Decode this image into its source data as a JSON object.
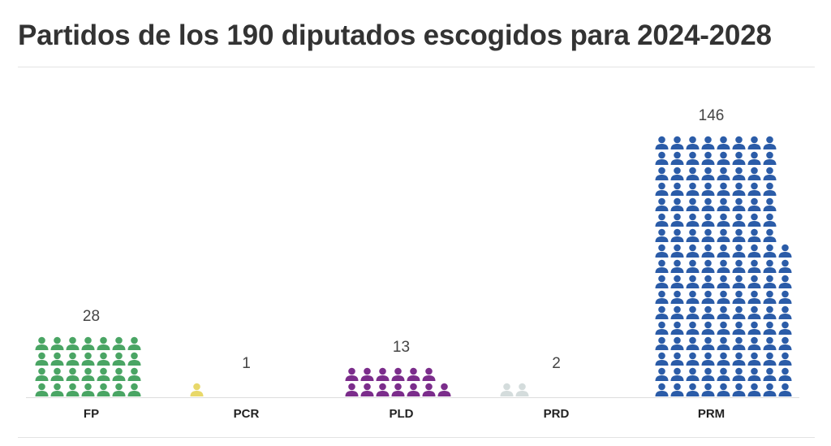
{
  "title": "Partidos de los 190 diputados escogidos para 2024-2028",
  "chart_data": {
    "type": "waffle",
    "unit": "diputado",
    "icon": "person-icon",
    "categories": [
      "FP",
      "PCR",
      "PLD",
      "PRD",
      "PRM"
    ],
    "values": [
      28,
      1,
      13,
      2,
      146
    ],
    "value_labels": [
      "28",
      "1",
      "13",
      "2",
      "146"
    ],
    "colors": [
      "#4aa564",
      "#e8d86a",
      "#7b2d8b",
      "#d4dcdc",
      "#2b5ca8"
    ],
    "legend": "none",
    "grid": false
  }
}
